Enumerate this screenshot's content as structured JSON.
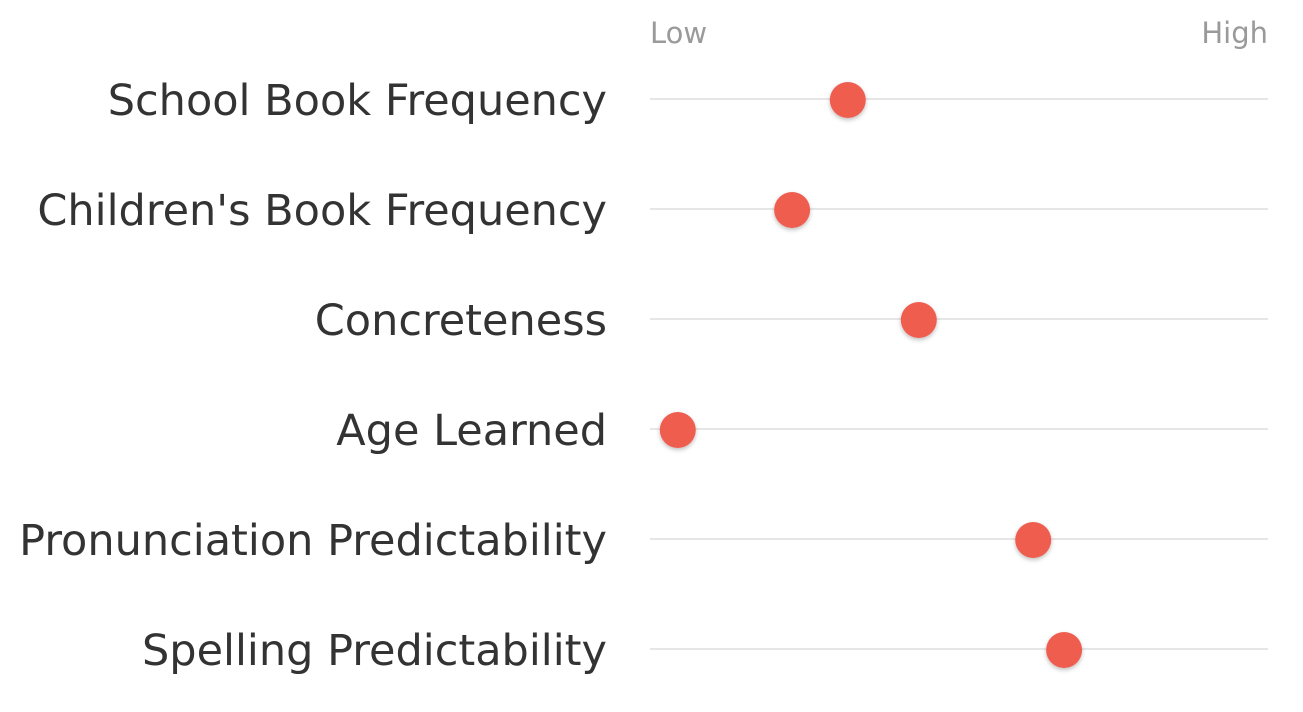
{
  "chart_data": {
    "type": "scatter",
    "title": "",
    "x_scale": {
      "low_label": "Low",
      "high_label": "High",
      "range": [
        0,
        1
      ]
    },
    "categories": [
      "School Book Frequency",
      "Children's Book Frequency",
      "Concreteness",
      "Age Learned",
      "Pronunciation Predictability",
      "Spelling Predictability"
    ],
    "values": [
      0.32,
      0.23,
      0.435,
      0.045,
      0.62,
      0.67
    ],
    "grid": false,
    "legend": "none",
    "colors": {
      "point": "#ef5d50",
      "track": "#d6d6d6",
      "label": "#333333",
      "scale_label": "#9a9a9a"
    }
  }
}
